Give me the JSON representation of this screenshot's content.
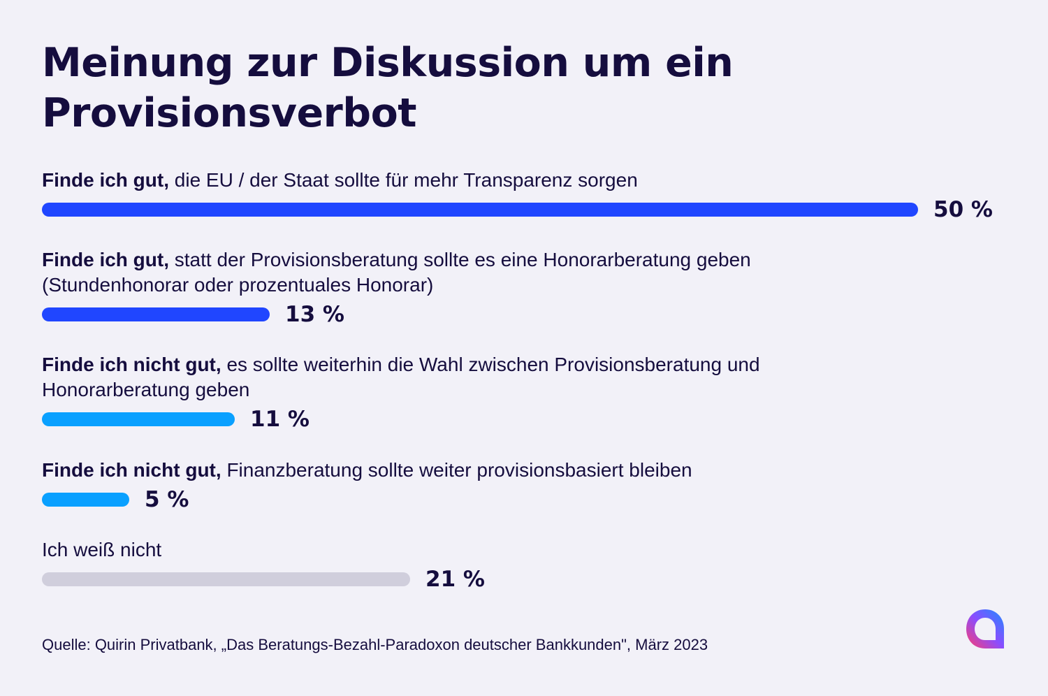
{
  "title": "Meinung zur Diskussion um ein Provisionsverbot",
  "chart_data": {
    "type": "bar",
    "orientation": "horizontal",
    "title": "Meinung zur Diskussion um ein Provisionsverbot",
    "unit": "%",
    "categories": [
      {
        "lead": "Finde ich gut,",
        "text": "die EU / der Staat sollte für mehr Transparenz sorgen"
      },
      {
        "lead": "Finde ich gut,",
        "text": "statt der Provisionsberatung sollte es eine Honorarberatung geben (Stundenhonorar oder prozentuales Honorar)"
      },
      {
        "lead": "Finde ich nicht gut,",
        "text": "es sollte weiterhin die Wahl zwischen Provisionsberatung und Honorarberatung geben"
      },
      {
        "lead": "Finde ich nicht gut,",
        "text": "Finanzberatung sollte weiter provisionsbasiert bleiben"
      },
      {
        "lead": "",
        "text": "Ich weiß nicht"
      }
    ],
    "values": [
      50,
      13,
      11,
      5,
      21
    ],
    "value_labels": [
      "50 %",
      "13 %",
      "11 %",
      "5 %",
      "21 %"
    ],
    "colors": [
      "#2046ff",
      "#2046ff",
      "#0aa0ff",
      "#0aa0ff",
      "#d0cedc"
    ],
    "xlim": [
      0,
      50
    ],
    "grid": false
  },
  "source": "Quelle: Quirin Privatbank, „Das Beratungs-Bezahl-Paradoxon deutscher Bankkunden\", März 2023",
  "logo": {
    "icon": "quirin-logo-icon",
    "gradient_colors": [
      "#ff3d6e",
      "#8a4dff",
      "#1f8bff"
    ]
  }
}
